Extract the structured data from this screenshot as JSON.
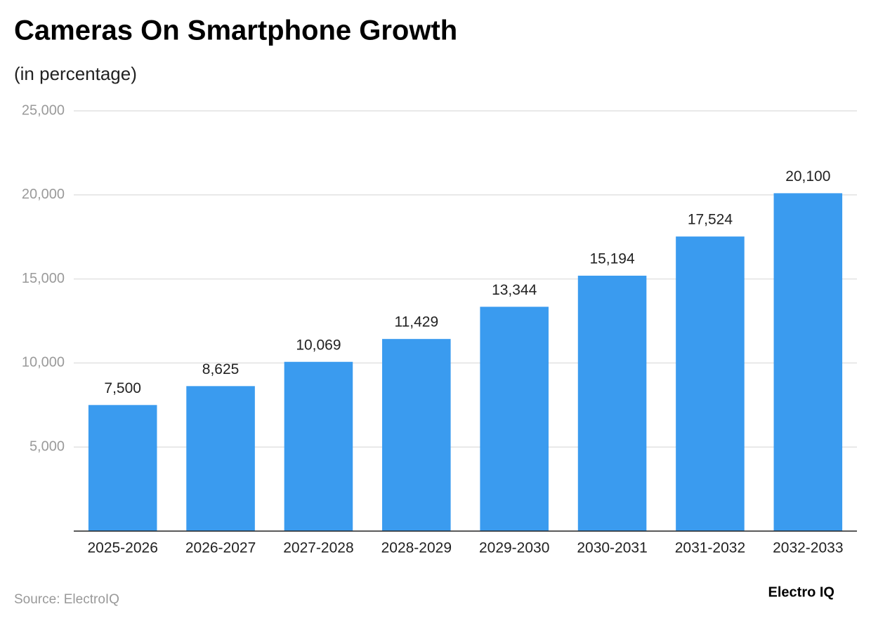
{
  "chart_data": {
    "type": "bar",
    "title": "Cameras On Smartphone Growth",
    "subtitle": "(in percentage)",
    "categories": [
      "2025-2026",
      "2026-2027",
      "2027-2028",
      "2028-2029",
      "2029-2030",
      "2030-2031",
      "2031-2032",
      "2032-2033"
    ],
    "values": [
      7500,
      8625,
      10069,
      11429,
      13344,
      15194,
      17524,
      20100
    ],
    "value_labels": [
      "7,500",
      "8,625",
      "10,069",
      "11,429",
      "13,344",
      "15,194",
      "17,524",
      "20,100"
    ],
    "color": "#3a9bef",
    "ylim": [
      0,
      25000
    ],
    "yticks": [
      {
        "value": 5000,
        "label": "5,000"
      },
      {
        "value": 10000,
        "label": "10,000"
      },
      {
        "value": 15000,
        "label": "15,000"
      },
      {
        "value": 20000,
        "label": "20,000"
      },
      {
        "value": 25000,
        "label": "25,000"
      }
    ],
    "grid": true,
    "source": "Source: ElectroIQ",
    "brand": "Electro IQ"
  }
}
